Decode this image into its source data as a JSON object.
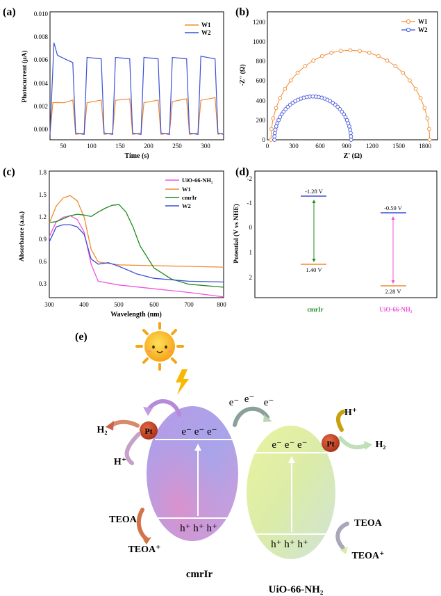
{
  "panels": {
    "a": {
      "label": "(a)",
      "xlabel": "Time (s)",
      "ylabel": "Photocurrent (μA)",
      "xticks": [
        "50",
        "100",
        "150",
        "200",
        "250",
        "300"
      ],
      "yticks": [
        "0.000",
        "0.002",
        "0.004",
        "0.006",
        "0.008",
        "0.010"
      ],
      "legend": [
        "W1",
        "W2"
      ]
    },
    "b": {
      "label": "(b)",
      "xlabel": "Z′ (Ω)",
      "ylabel": "-Z″ (Ω)",
      "xticks": [
        "0",
        "300",
        "600",
        "900",
        "1200",
        "1500",
        "1800"
      ],
      "yticks": [
        "0",
        "200",
        "400",
        "600",
        "800",
        "1000",
        "1200"
      ],
      "legend": [
        "W1",
        "W2"
      ]
    },
    "c": {
      "label": "(c)",
      "xlabel": "Wavelength (nm)",
      "ylabel": "Absorbance (a.u.)",
      "xticks": [
        "300",
        "400",
        "500",
        "600",
        "700",
        "800"
      ],
      "yticks": [
        "0.3",
        "0.6",
        "0.9",
        "1.2",
        "1.5",
        "1.8"
      ],
      "legend": [
        "UiO-66-NH₂",
        "W1",
        "cmrIr",
        "W2"
      ]
    },
    "d": {
      "label": "(d)",
      "ylabel": "Potential (V vs NHE)",
      "yticks": [
        "-2",
        "-1",
        "0",
        "1",
        "2"
      ],
      "materials": [
        {
          "name": "cmrIr",
          "cb": "-1.28 V",
          "vb": "1.40 V"
        },
        {
          "name": "UiO-66-NH₂",
          "cb": "-0.59 V",
          "vb": "2.28 V"
        }
      ]
    },
    "e": {
      "label": "(e)",
      "left_name": "cmrIr",
      "right_name": "UiO-66-NH₂",
      "electrons": "e⁻ e⁻ e⁻",
      "transfer": [
        "e⁻",
        "e⁻",
        "e⁻"
      ],
      "holes": "h⁺ h⁺ h⁺",
      "pt": "Pt",
      "h2": "H₂",
      "hplus": "H⁺",
      "teoa": "TEOA",
      "teoa_plus": "TEOA⁺",
      "teoa_plus_right": "TEOA⁺"
    }
  },
  "colors": {
    "w1": "#f28a2e",
    "w2": "#3b4fd8",
    "uio": "#ee55dd",
    "cmrir": "#1e8a1e",
    "hole": "#e88a2a"
  },
  "chart_data": [
    {
      "type": "line",
      "title": "",
      "xlabel": "Time (s)",
      "ylabel": "Photocurrent (μA)",
      "xlim": [
        25,
        330
      ],
      "ylim": [
        -0.0005,
        0.01
      ],
      "series": [
        {
          "name": "W1",
          "x": [
            25,
            30,
            50,
            65,
            70,
            85,
            90,
            115,
            120,
            135,
            140,
            165,
            170,
            185,
            190,
            215,
            220,
            235,
            240,
            265,
            270,
            285,
            290,
            315,
            320,
            330
          ],
          "values": [
            0.0,
            0.0025,
            0.0026,
            0.0027,
            0.0,
            0.0,
            0.0026,
            0.0027,
            0.0,
            0.0,
            0.0028,
            0.0028,
            0.0,
            0.0,
            0.0026,
            0.0027,
            0.0,
            0.0,
            0.0027,
            0.0028,
            0.0,
            0.0,
            0.0028,
            0.0029,
            0.0,
            0.0
          ]
        },
        {
          "name": "W2",
          "x": [
            25,
            32,
            38,
            50,
            65,
            70,
            85,
            90,
            115,
            120,
            135,
            140,
            165,
            170,
            185,
            190,
            215,
            220,
            235,
            240,
            265,
            270,
            285,
            290,
            315,
            320,
            330
          ],
          "values": [
            0.0,
            0.0074,
            0.0065,
            0.0061,
            0.0059,
            0.0,
            0.0,
            0.0062,
            0.0062,
            0.0,
            0.0,
            0.0062,
            0.0062,
            0.0,
            0.0,
            0.0062,
            0.0062,
            0.0,
            0.0,
            0.0062,
            0.0062,
            0.0,
            0.0,
            0.0063,
            0.0062,
            0.0,
            0.0
          ]
        }
      ]
    },
    {
      "type": "scatter",
      "title": "",
      "xlabel": "Z′ (Ω)",
      "ylabel": "-Z″ (Ω)",
      "xlim": [
        0,
        1950
      ],
      "ylim": [
        0,
        1300
      ],
      "series": [
        {
          "name": "W1",
          "center": 950,
          "radius": 910,
          "xend": 1870,
          "yend": 520
        },
        {
          "name": "W2",
          "center": 520,
          "radius": 440,
          "xend": 960,
          "yend": 190
        }
      ]
    },
    {
      "type": "line",
      "title": "",
      "xlabel": "Wavelength (nm)",
      "ylabel": "Absorbance (a.u.)",
      "xlim": [
        300,
        800
      ],
      "ylim": [
        0.1,
        1.8
      ],
      "series": [
        {
          "name": "UiO-66-NH₂",
          "x": [
            300,
            320,
            340,
            360,
            380,
            400,
            420,
            440,
            500,
            600,
            700,
            800
          ],
          "values": [
            0.92,
            1.12,
            1.18,
            1.2,
            1.15,
            0.98,
            0.55,
            0.32,
            0.27,
            0.22,
            0.17,
            0.11
          ]
        },
        {
          "name": "W1",
          "x": [
            300,
            320,
            340,
            360,
            380,
            400,
            420,
            440,
            500,
            600,
            700,
            800
          ],
          "values": [
            1.1,
            1.33,
            1.44,
            1.47,
            1.4,
            1.18,
            0.75,
            0.58,
            0.54,
            0.53,
            0.52,
            0.51
          ]
        },
        {
          "name": "cmrIr",
          "x": [
            300,
            320,
            340,
            360,
            380,
            400,
            420,
            440,
            460,
            480,
            500,
            520,
            540,
            560,
            600,
            650,
            700,
            800
          ],
          "values": [
            1.11,
            1.12,
            1.16,
            1.2,
            1.22,
            1.21,
            1.19,
            1.25,
            1.3,
            1.34,
            1.35,
            1.25,
            1.05,
            0.8,
            0.5,
            0.35,
            0.28,
            0.24
          ]
        },
        {
          "name": "W2",
          "x": [
            300,
            320,
            340,
            360,
            380,
            400,
            420,
            440,
            470,
            500,
            550,
            600,
            700,
            800
          ],
          "values": [
            0.85,
            1.05,
            1.08,
            1.08,
            1.05,
            0.95,
            0.62,
            0.55,
            0.57,
            0.52,
            0.42,
            0.36,
            0.32,
            0.31
          ]
        }
      ]
    }
  ]
}
